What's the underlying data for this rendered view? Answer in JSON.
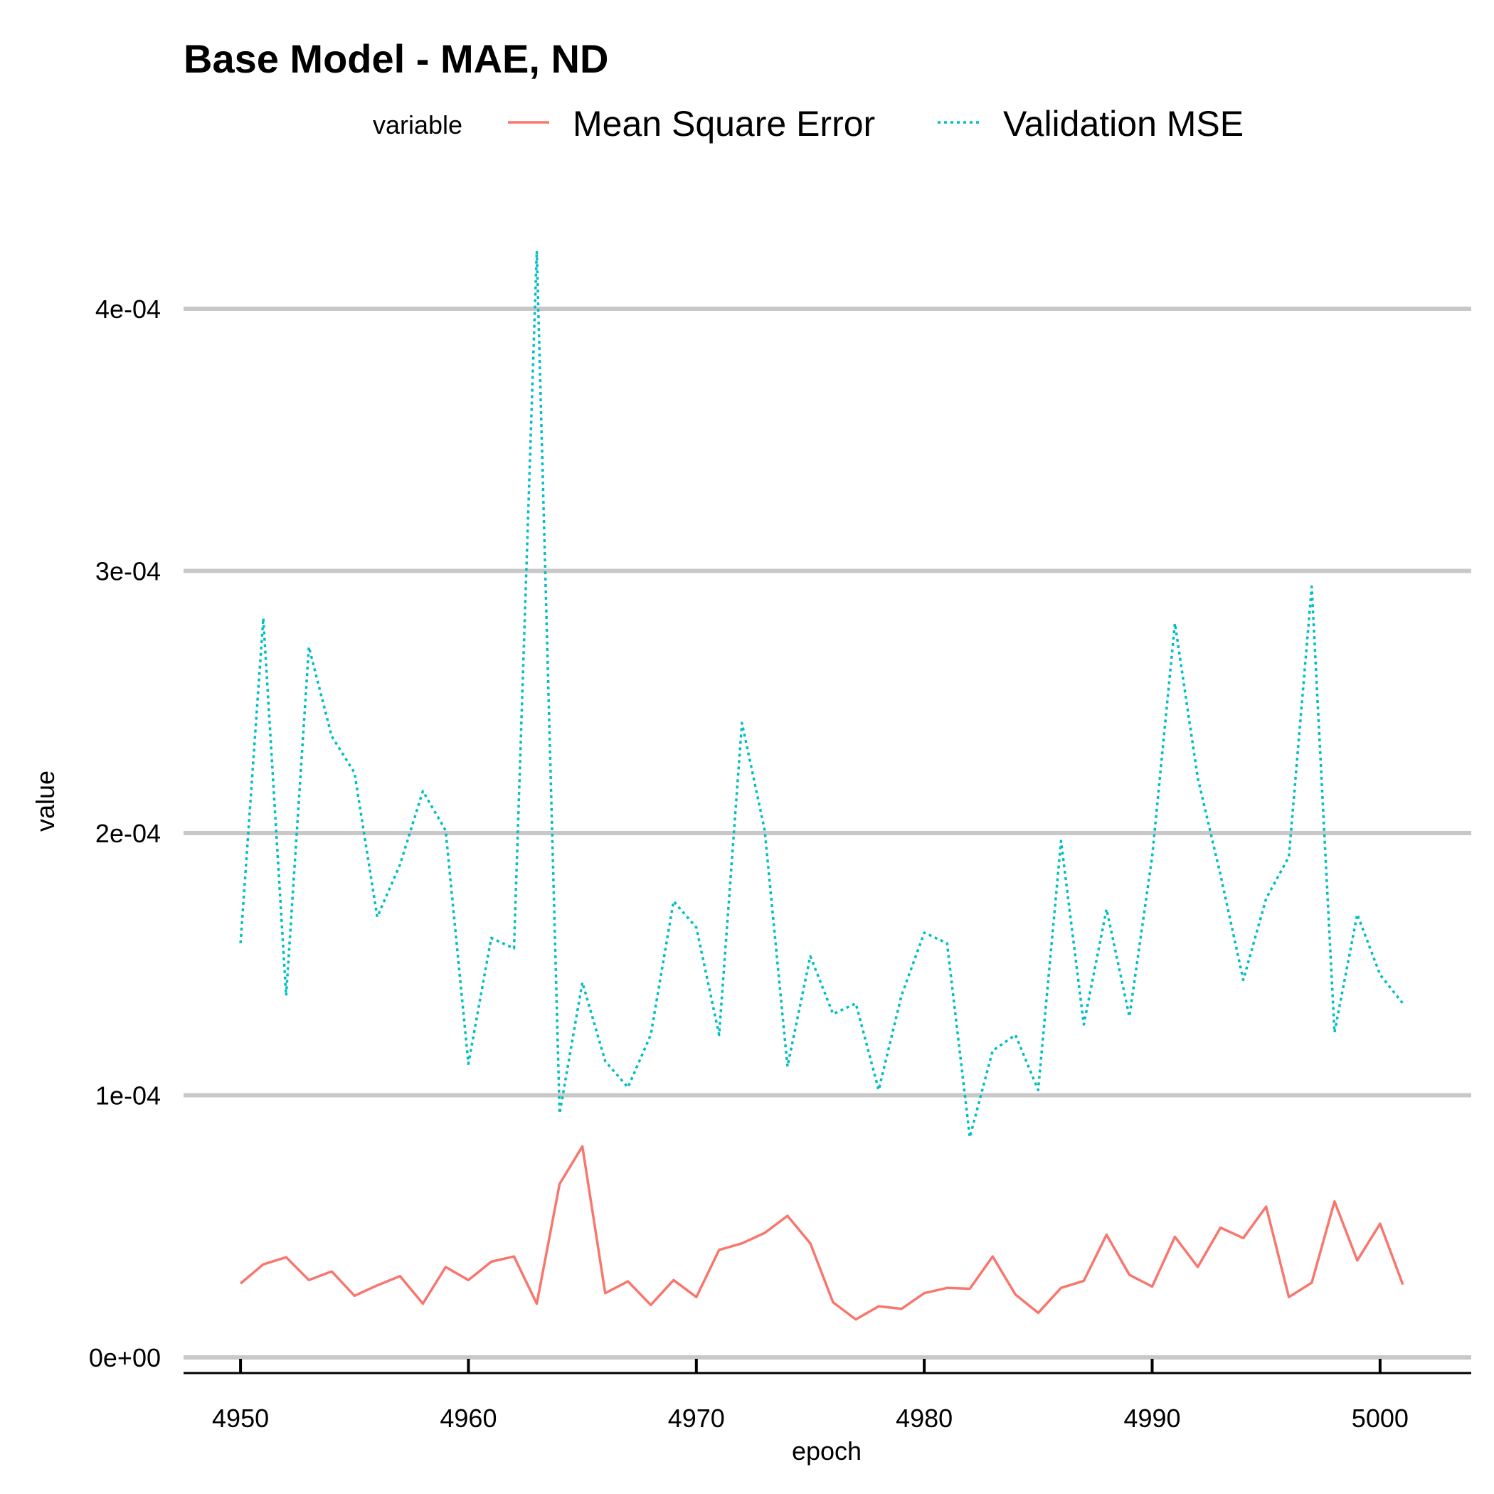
{
  "chart_data": {
    "type": "line",
    "title": "Base Model - MAE, ND",
    "xlabel": "epoch",
    "ylabel": "value",
    "legend": {
      "title": "variable",
      "position": "top"
    },
    "xlim": [
      4947.5,
      5004
    ],
    "ylim": [
      -6.5e-06,
      0.0004
    ],
    "x_ticks": [
      4950,
      4960,
      4970,
      4980,
      4990,
      5000
    ],
    "x_tick_labels": [
      "4950",
      "4960",
      "4970",
      "4980",
      "4990",
      "5000"
    ],
    "y_ticks": [
      0,
      0.0001,
      0.0002,
      0.0003,
      0.0004
    ],
    "y_tick_labels": [
      "0e+00",
      "1e-04",
      "2e-04",
      "3e-04",
      "4e-04"
    ],
    "grid": "horizontal major",
    "x": [
      4950,
      4951,
      4952,
      4953,
      4954,
      4955,
      4956,
      4957,
      4958,
      4959,
      4960,
      4961,
      4962,
      4963,
      4964,
      4965,
      4966,
      4967,
      4968,
      4969,
      4970,
      4971,
      4972,
      4973,
      4974,
      4975,
      4976,
      4977,
      4978,
      4979,
      4980,
      4981,
      4982,
      4983,
      4984,
      4985,
      4986,
      4987,
      4988,
      4989,
      4990,
      4991,
      4992,
      4993,
      4994,
      4995,
      4996,
      4997,
      4998,
      4999,
      5000,
      5001
    ],
    "series": [
      {
        "name": "Mean Square Error",
        "color": "#F8766D",
        "linetype": "solid",
        "values": [
          2.82e-05,
          3.55e-05,
          3.82e-05,
          2.95e-05,
          3.28e-05,
          2.35e-05,
          2.75e-05,
          3.1e-05,
          2.05e-05,
          3.45e-05,
          2.95e-05,
          3.65e-05,
          3.85e-05,
          2.05e-05,
          6.62e-05,
          8.05e-05,
          2.45e-05,
          2.9e-05,
          2e-05,
          2.95e-05,
          2.3e-05,
          4.1e-05,
          4.35e-05,
          4.75e-05,
          5.4e-05,
          4.35e-05,
          2.1e-05,
          1.45e-05,
          1.95e-05,
          1.85e-05,
          2.45e-05,
          2.65e-05,
          2.62e-05,
          3.85e-05,
          2.4e-05,
          1.7e-05,
          2.65e-05,
          2.92e-05,
          4.68e-05,
          3.15e-05,
          2.7e-05,
          4.6e-05,
          3.45e-05,
          4.95e-05,
          4.55e-05,
          5.75e-05,
          2.3e-05,
          2.85e-05,
          5.95e-05,
          3.7e-05,
          5.1e-05,
          2.78e-05
        ]
      },
      {
        "name": "Validation MSE",
        "color": "#00BFC4",
        "linetype": "dotted",
        "values": [
          0.000158,
          0.000282,
          0.000138,
          0.000271,
          0.000237,
          0.000223,
          0.000168,
          0.000188,
          0.000216,
          0.000201,
          0.000112,
          0.00016,
          0.000156,
          0.000422,
          9.3e-05,
          0.000143,
          0.000113,
          0.000103,
          0.000123,
          0.000174,
          0.000164,
          0.000123,
          0.000242,
          0.000201,
          0.000111,
          0.000153,
          0.000131,
          0.000135,
          0.000102,
          0.000138,
          0.000162,
          0.000158,
          8.4e-05,
          0.000117,
          0.000123,
          0.000102,
          0.000197,
          0.000127,
          0.000171,
          0.00013,
          0.000191,
          0.00028,
          0.000221,
          0.000184,
          0.000144,
          0.000175,
          0.000191,
          0.000294,
          0.000124,
          0.000169,
          0.000146,
          0.000135
        ]
      }
    ]
  }
}
